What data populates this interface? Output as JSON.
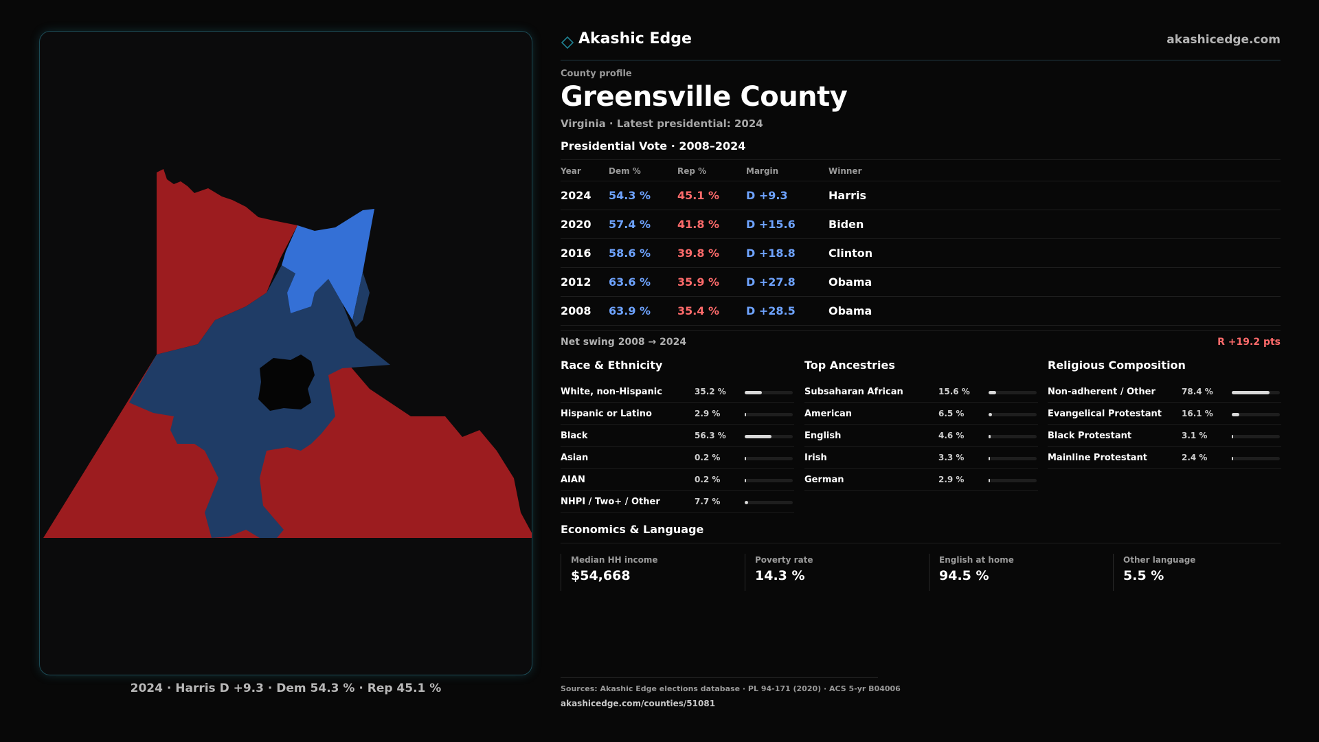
{
  "brand": {
    "name": "Akashic Edge",
    "url": "akashicedge.com",
    "accent": "#1f7f8f"
  },
  "profile": {
    "eyebrow": "County profile",
    "title": "Greensville County",
    "subtitle": "Virginia · Latest presidential: 2024"
  },
  "vote": {
    "section_title": "Presidential Vote · 2008–2024",
    "headers": {
      "year": "Year",
      "dem": "Dem %",
      "rep": "Rep %",
      "margin": "Margin",
      "winner": "Winner"
    },
    "rows": [
      {
        "year": "2024",
        "dem": "54.3 %",
        "rep": "45.1 %",
        "margin": "D +9.3",
        "winner": "Harris"
      },
      {
        "year": "2020",
        "dem": "57.4 %",
        "rep": "41.8 %",
        "margin": "D +15.6",
        "winner": "Biden"
      },
      {
        "year": "2016",
        "dem": "58.6 %",
        "rep": "39.8 %",
        "margin": "D +18.8",
        "winner": "Clinton"
      },
      {
        "year": "2012",
        "dem": "63.6 %",
        "rep": "35.9 %",
        "margin": "D +27.8",
        "winner": "Obama"
      },
      {
        "year": "2008",
        "dem": "63.9 %",
        "rep": "35.4 %",
        "margin": "D +28.5",
        "winner": "Obama"
      }
    ],
    "swing_label": "Net swing 2008 → 2024",
    "swing_value": "R +19.2 pts",
    "colors": {
      "dem": "#6ea3ff",
      "rep": "#ff6b6b"
    }
  },
  "race": {
    "title": "Race & Ethnicity",
    "items": [
      {
        "label": "White, non-Hispanic",
        "value": "35.2 %",
        "pct": 35.2
      },
      {
        "label": "Hispanic or Latino",
        "value": "2.9 %",
        "pct": 2.9
      },
      {
        "label": "Black",
        "value": "56.3 %",
        "pct": 56.3
      },
      {
        "label": "Asian",
        "value": "0.2 %",
        "pct": 0.2
      },
      {
        "label": "AIAN",
        "value": "0.2 %",
        "pct": 0.2
      },
      {
        "label": "NHPI / Two+ / Other",
        "value": "7.7 %",
        "pct": 7.7
      }
    ]
  },
  "ancestry": {
    "title": "Top Ancestries",
    "items": [
      {
        "label": "Subsaharan African",
        "value": "15.6 %",
        "pct": 15.6
      },
      {
        "label": "American",
        "value": "6.5 %",
        "pct": 6.5
      },
      {
        "label": "English",
        "value": "4.6 %",
        "pct": 4.6
      },
      {
        "label": "Irish",
        "value": "3.3 %",
        "pct": 3.3
      },
      {
        "label": "German",
        "value": "2.9 %",
        "pct": 2.9
      }
    ]
  },
  "religion": {
    "title": "Religious Composition",
    "items": [
      {
        "label": "Non-adherent / Other",
        "value": "78.4 %",
        "pct": 78.4
      },
      {
        "label": "Evangelical Protestant",
        "value": "16.1 %",
        "pct": 16.1
      },
      {
        "label": "Black Protestant",
        "value": "3.1 %",
        "pct": 3.1
      },
      {
        "label": "Mainline Protestant",
        "value": "2.4 %",
        "pct": 2.4
      }
    ]
  },
  "economics": {
    "title": "Economics & Language",
    "cards": [
      {
        "label": "Median HH income",
        "value": "$54,668"
      },
      {
        "label": "Poverty rate",
        "value": "14.3 %"
      },
      {
        "label": "English at home",
        "value": "94.5 %"
      },
      {
        "label": "Other language",
        "value": "5.5 %"
      }
    ]
  },
  "map": {
    "caption": "2024 · Harris D +9.3 · Dem 54.3 % · Rep 45.1 %",
    "colors": {
      "rep": "#9c1c1f",
      "dem_light": "#3470d6",
      "dem_dark": "#1f3c66",
      "city": "#050505"
    }
  },
  "footer": {
    "sources": "Sources: Akashic Edge elections database · PL 94-171 (2020) · ACS 5-yr B04006",
    "url": "akashicedge.com/counties/51081"
  }
}
